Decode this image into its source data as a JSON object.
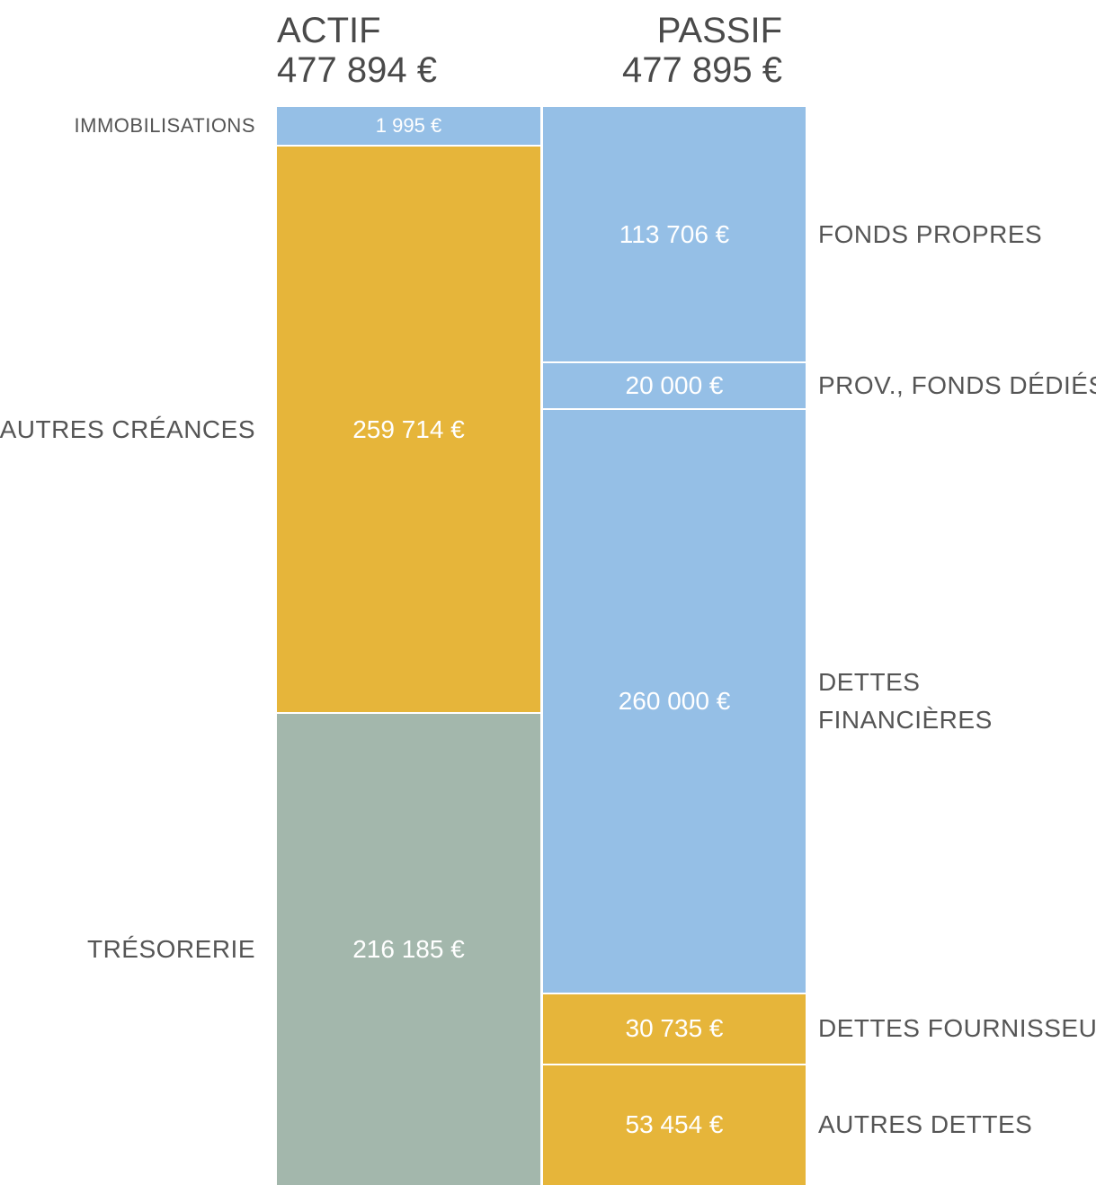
{
  "chart_data": {
    "type": "balance",
    "columns": [
      {
        "title": "ACTIF",
        "total": 477894,
        "total_label": "477 894 €",
        "categories": [
          "IMMOBILISATIONS",
          "AUTRES CRÉANCES",
          "TRÉSORERIE"
        ],
        "values": [
          1995,
          259714,
          216185
        ],
        "value_labels": [
          "1 995 €",
          "259 714 €",
          "216 185 €"
        ],
        "colors": [
          "#95bfe6",
          "#e6b53a",
          "#a3b7ac"
        ]
      },
      {
        "title": "PASSIF",
        "total": 477895,
        "total_label": "477 895 €",
        "categories": [
          "FONDS PROPRES",
          "PROV., FONDS DÉDIÉS",
          "DETTES FINANCIÈRES",
          "DETTES FOURNISSEURS",
          "AUTRES DETTES"
        ],
        "values": [
          113706,
          20000,
          260000,
          30735,
          53454
        ],
        "value_labels": [
          "113 706 €",
          "20 000 €",
          "260 000 €",
          "30 735 €",
          "53 454 €"
        ],
        "colors": [
          "#95bfe6",
          "#95bfe6",
          "#95bfe6",
          "#e6b53a",
          "#e6b53a"
        ]
      }
    ]
  }
}
